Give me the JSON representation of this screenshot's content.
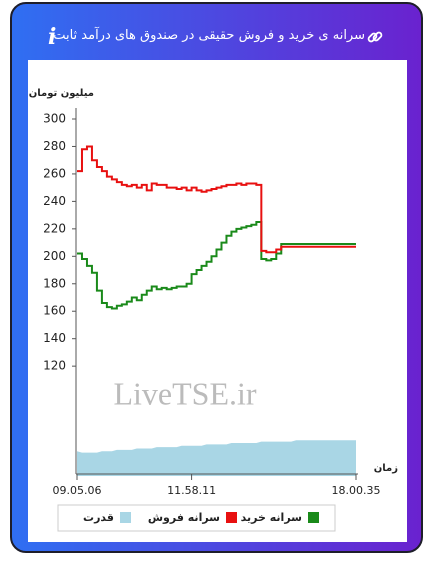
{
  "chart_data": {
    "type": "line",
    "title": "سرانه ی خرید و فروش حقیقی در صندوق های درآمد ثابت",
    "y_label": "میلیون تومان",
    "x_label": "زمان",
    "watermark": "LiveTSE.ir",
    "categories": [
      "09.05.06",
      null,
      null,
      null,
      null,
      null,
      null,
      null,
      null,
      null,
      null,
      null,
      null,
      null,
      null,
      null,
      null,
      null,
      null,
      null,
      null,
      null,
      null,
      "11.58.11",
      null,
      null,
      null,
      null,
      null,
      null,
      null,
      null,
      null,
      null,
      null,
      null,
      null,
      null,
      null,
      null,
      null,
      null,
      null,
      null,
      null,
      null,
      null,
      null,
      null,
      null,
      null,
      null,
      null,
      null,
      null,
      null,
      "18.00.35"
    ],
    "ylim": [
      40,
      300
    ],
    "yticks": [
      120,
      140,
      160,
      180,
      200,
      220,
      240,
      260,
      280,
      300
    ],
    "series": [
      {
        "name": "سرانه خرید",
        "color": "#1a8a1a",
        "values": [
          202,
          198,
          193,
          188,
          175,
          166,
          163,
          162,
          164,
          165,
          167,
          170,
          168,
          172,
          175,
          178,
          176,
          177,
          176,
          177,
          178,
          178,
          180,
          187,
          190,
          193,
          196,
          200,
          205,
          210,
          215,
          218,
          220,
          221,
          222,
          223,
          225,
          198,
          197,
          198,
          202,
          209,
          209,
          209,
          209,
          209,
          209,
          209,
          209,
          209,
          209,
          209,
          209,
          209,
          209,
          209,
          209
        ]
      },
      {
        "name": "سرانه فروش",
        "color": "#e81010",
        "values": [
          262,
          278,
          280,
          270,
          265,
          262,
          258,
          256,
          254,
          252,
          251,
          252,
          250,
          252,
          248,
          253,
          252,
          252,
          250,
          250,
          249,
          250,
          248,
          250,
          248,
          247,
          248,
          249,
          250,
          251,
          252,
          252,
          253,
          252,
          253,
          253,
          252,
          204,
          203,
          203,
          205,
          207,
          207,
          207,
          207,
          207,
          207,
          207,
          207,
          207,
          207,
          207,
          207,
          207,
          207,
          207,
          207
        ]
      },
      {
        "name": "قدرت",
        "color": "#a9d6e5",
        "style": "area",
        "values": [
          58,
          57,
          57,
          57,
          57,
          58,
          58,
          58,
          59,
          59,
          59,
          59,
          60,
          60,
          60,
          60,
          61,
          61,
          61,
          61,
          61,
          62,
          62,
          62,
          62,
          62,
          63,
          63,
          63,
          63,
          63,
          64,
          64,
          64,
          64,
          64,
          64,
          65,
          65,
          65,
          65,
          65,
          65,
          65,
          66,
          66,
          66,
          66,
          66,
          66,
          66,
          66,
          66,
          66,
          66,
          66,
          66
        ]
      }
    ]
  }
}
